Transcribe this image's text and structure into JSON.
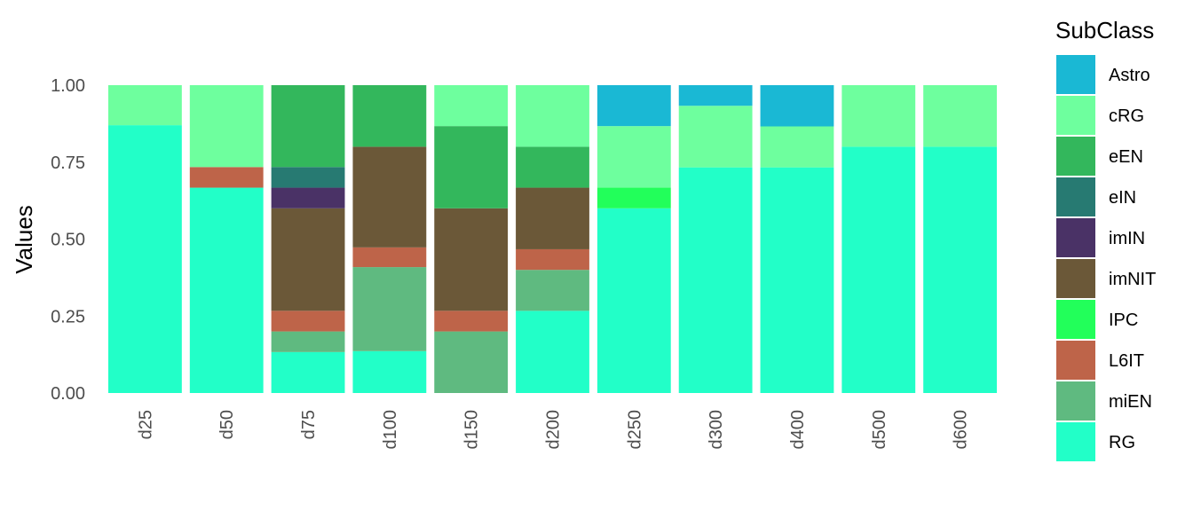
{
  "chart_data": {
    "type": "bar",
    "stacked": true,
    "normalized": true,
    "ylabel": "Values",
    "xlabel": "",
    "ylim": [
      0,
      1
    ],
    "yticks": [
      "0.00",
      "0.25",
      "0.50",
      "0.75",
      "1.00"
    ],
    "grid": false,
    "legend_title": "SubClass",
    "legend_position": "right",
    "categories": [
      "d25",
      "d50",
      "d75",
      "d100",
      "d150",
      "d200",
      "d250",
      "d300",
      "d400",
      "d500",
      "d600"
    ],
    "series": [
      {
        "name": "RG",
        "color": "#22FFC8",
        "values": [
          0.87,
          0.667,
          0.133,
          0.136,
          0,
          0.267,
          0.6,
          0.733,
          0.733,
          0.8,
          0.8
        ]
      },
      {
        "name": "miEN",
        "color": "#5FBA80",
        "values": [
          0,
          0,
          0.067,
          0.273,
          0.2,
          0.133,
          0,
          0,
          0,
          0,
          0
        ]
      },
      {
        "name": "L6IT",
        "color": "#BE6449",
        "values": [
          0,
          0.067,
          0.067,
          0.064,
          0.067,
          0.067,
          0,
          0,
          0,
          0,
          0
        ]
      },
      {
        "name": "IPC",
        "color": "#22FF5A",
        "values": [
          0,
          0,
          0,
          0,
          0,
          0,
          0.067,
          0,
          0,
          0,
          0
        ]
      },
      {
        "name": "imNIT",
        "color": "#6B5838",
        "values": [
          0,
          0,
          0.333,
          0.327,
          0.333,
          0.2,
          0,
          0,
          0,
          0,
          0
        ]
      },
      {
        "name": "imIN",
        "color": "#4A3266",
        "values": [
          0,
          0,
          0.067,
          0,
          0,
          0,
          0,
          0,
          0,
          0,
          0
        ]
      },
      {
        "name": "eIN",
        "color": "#277A72",
        "values": [
          0,
          0,
          0.067,
          0,
          0,
          0,
          0,
          0,
          0,
          0,
          0
        ]
      },
      {
        "name": "eEN",
        "color": "#33B75C",
        "values": [
          0,
          0,
          0.266,
          0.2,
          0.267,
          0.133,
          0,
          0,
          0,
          0,
          0
        ]
      },
      {
        "name": "cRG",
        "color": "#6EFF9E",
        "values": [
          0.13,
          0.266,
          0,
          0,
          0.133,
          0.2,
          0.2,
          0.2,
          0.133,
          0.2,
          0.2
        ]
      },
      {
        "name": "Astro",
        "color": "#1AB8D4",
        "values": [
          0,
          0,
          0,
          0,
          0,
          0,
          0.133,
          0.067,
          0.134,
          0,
          0
        ]
      }
    ],
    "legend_order": [
      "Astro",
      "cRG",
      "eEN",
      "eIN",
      "imIN",
      "imNIT",
      "IPC",
      "L6IT",
      "miEN",
      "RG"
    ]
  }
}
